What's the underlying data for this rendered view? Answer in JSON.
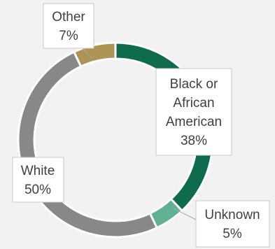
{
  "chart_data": {
    "type": "pie",
    "variant": "donut",
    "start_angle_deg": 0,
    "direction": "clockwise",
    "title": "",
    "legend": "none",
    "slices": [
      {
        "label_lines": [
          "Black or",
          "African",
          "American"
        ],
        "value": 38,
        "value_label": "38%",
        "color": "#0e6b4d"
      },
      {
        "label_lines": [
          "Unknown"
        ],
        "value": 5,
        "value_label": "5%",
        "color": "#5fb191"
      },
      {
        "label_lines": [
          "White"
        ],
        "value": 50,
        "value_label": "50%",
        "color": "#888888"
      },
      {
        "label_lines": [
          "Other"
        ],
        "value": 7,
        "value_label": "7%",
        "color": "#ae9454"
      }
    ]
  }
}
